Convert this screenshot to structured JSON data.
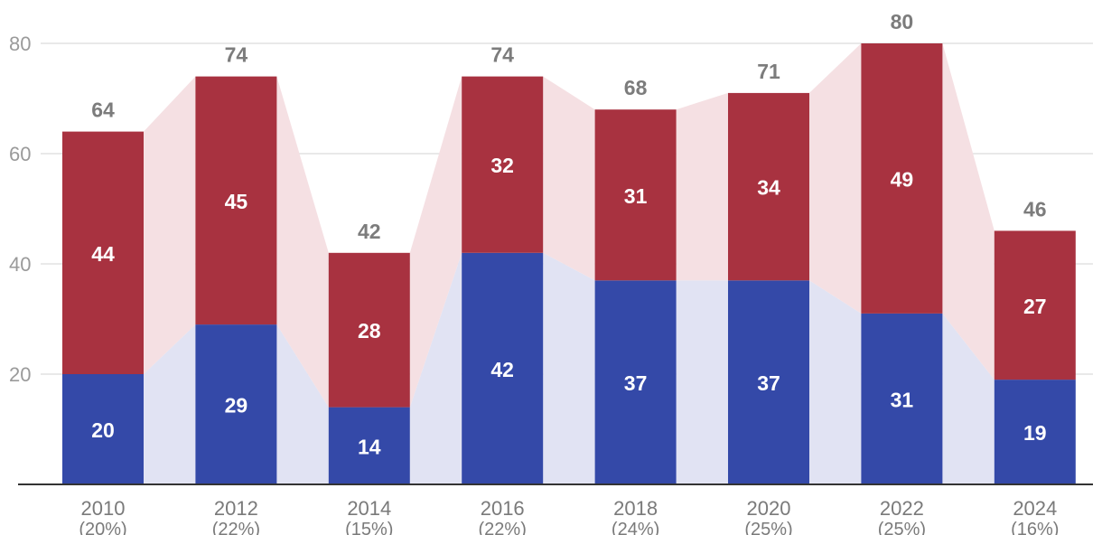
{
  "chart_data": {
    "type": "bar",
    "stacked": true,
    "categories": [
      "2010",
      "2012",
      "2014",
      "2016",
      "2018",
      "2020",
      "2022",
      "2024"
    ],
    "category_sublabels": [
      "(20%)",
      "(22%)",
      "(15%)",
      "(22%)",
      "(24%)",
      "(25%)",
      "(25%)",
      "(16%)"
    ],
    "series": [
      {
        "values": [
          20,
          29,
          14,
          42,
          37,
          37,
          31,
          19
        ],
        "color": "#3449a8",
        "band_color": "#e1e3f3"
      },
      {
        "values": [
          44,
          45,
          28,
          32,
          31,
          34,
          49,
          27
        ],
        "color": "#a83240",
        "band_color": "#f5e0e3"
      }
    ],
    "totals": [
      64,
      74,
      42,
      74,
      68,
      71,
      80,
      46
    ],
    "yticks": [
      20,
      40,
      60,
      80
    ],
    "ylim": [
      0,
      80
    ],
    "grid": true,
    "title": "",
    "xlabel": "",
    "ylabel": ""
  }
}
